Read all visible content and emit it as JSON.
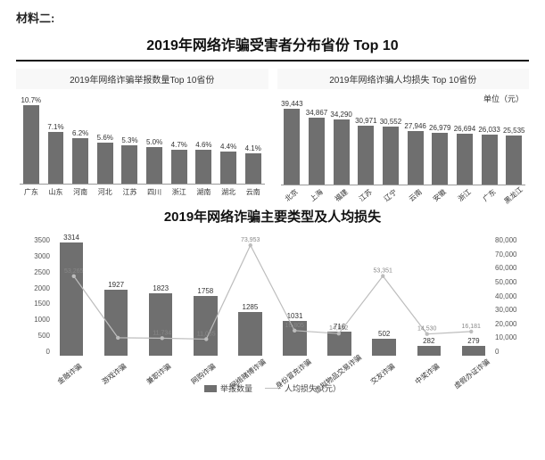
{
  "header_label": "材料二:",
  "title_top": "2019年网络诈骗受害者分布省份 Top 10",
  "title_bottom": "2019年网络诈骗主要类型及人均损失",
  "chart_reports": {
    "type": "bar",
    "title": "2019年网络诈骗举报数量Top 10省份",
    "categories": [
      "广东",
      "山东",
      "河南",
      "河北",
      "江苏",
      "四川",
      "浙江",
      "湖南",
      "湖北",
      "云南"
    ],
    "values_pct": [
      10.7,
      7.1,
      6.2,
      5.6,
      5.3,
      5.0,
      4.7,
      4.6,
      4.4,
      4.1
    ],
    "value_labels": [
      "10.7%",
      "7.1%",
      "6.2%",
      "5.6%",
      "5.3%",
      "5.0%",
      "4.7%",
      "4.6%",
      "4.4%",
      "4.1%"
    ],
    "bar_color": "#6f6f6f",
    "ylim": [
      0,
      11
    ],
    "background": "#ffffff",
    "label_fontsize": 8
  },
  "chart_loss": {
    "type": "bar",
    "title": "2019年网络诈骗人均损失 Top 10省份",
    "unit_label": "单位（元）",
    "categories": [
      "北京",
      "上海",
      "福建",
      "江苏",
      "辽宁",
      "云南",
      "安徽",
      "浙江",
      "广东",
      "黑龙江"
    ],
    "values": [
      39443,
      34867,
      34290,
      30971,
      30552,
      27946,
      26979,
      26694,
      26033,
      25535
    ],
    "value_labels": [
      "39,443",
      "34,867",
      "34,290",
      "30,971",
      "30,552",
      "27,946",
      "26,979",
      "26,694",
      "26,033",
      "25,535"
    ],
    "bar_color": "#6f6f6f",
    "ylim": [
      0,
      42000
    ],
    "background": "#ffffff",
    "label_fontsize": 8
  },
  "chart_types": {
    "type": "bar+line",
    "categories": [
      "金融诈骗",
      "游戏诈骗",
      "兼职诈骗",
      "网购诈骗",
      "网络赌博诈骗",
      "身份冒充诈骗",
      "虚拟物品交易诈骗",
      "交友诈骗",
      "中奖诈骗",
      "虚假办证诈骗"
    ],
    "bar_values": [
      3314,
      1927,
      1823,
      1758,
      1285,
      1031,
      716,
      502,
      282,
      279
    ],
    "bar_labels": [
      "3314",
      "1927",
      "1823",
      "1758",
      "1285",
      "1031",
      "716",
      "502",
      "282",
      "279"
    ],
    "bar_color": "#6f6f6f",
    "line_values": [
      53265,
      12000,
      11734,
      11085,
      73953,
      16805,
      14812,
      53351,
      14530,
      16181
    ],
    "line_labels": [
      "53,265",
      "",
      "11,734",
      "11,085",
      "73,953",
      "16,805",
      "14,812",
      "53,351",
      "14,530",
      "16,181"
    ],
    "line_color": "#bdbdbd",
    "marker_color": "#bdbdbd",
    "y_left": {
      "min": 0,
      "max": 3500,
      "step": 500,
      "ticks": [
        "0",
        "500",
        "1000",
        "1500",
        "2000",
        "2500",
        "3000",
        "3500"
      ]
    },
    "y_right": {
      "min": 0,
      "max": 80000,
      "step": 10000,
      "ticks": [
        "0",
        "10,000",
        "20,000",
        "30,000",
        "40,000",
        "50,000",
        "60,000",
        "70,000",
        "80,000"
      ]
    },
    "legend": {
      "bar": "举报数量",
      "line": "人均损失（元）"
    },
    "background": "#ffffff"
  }
}
